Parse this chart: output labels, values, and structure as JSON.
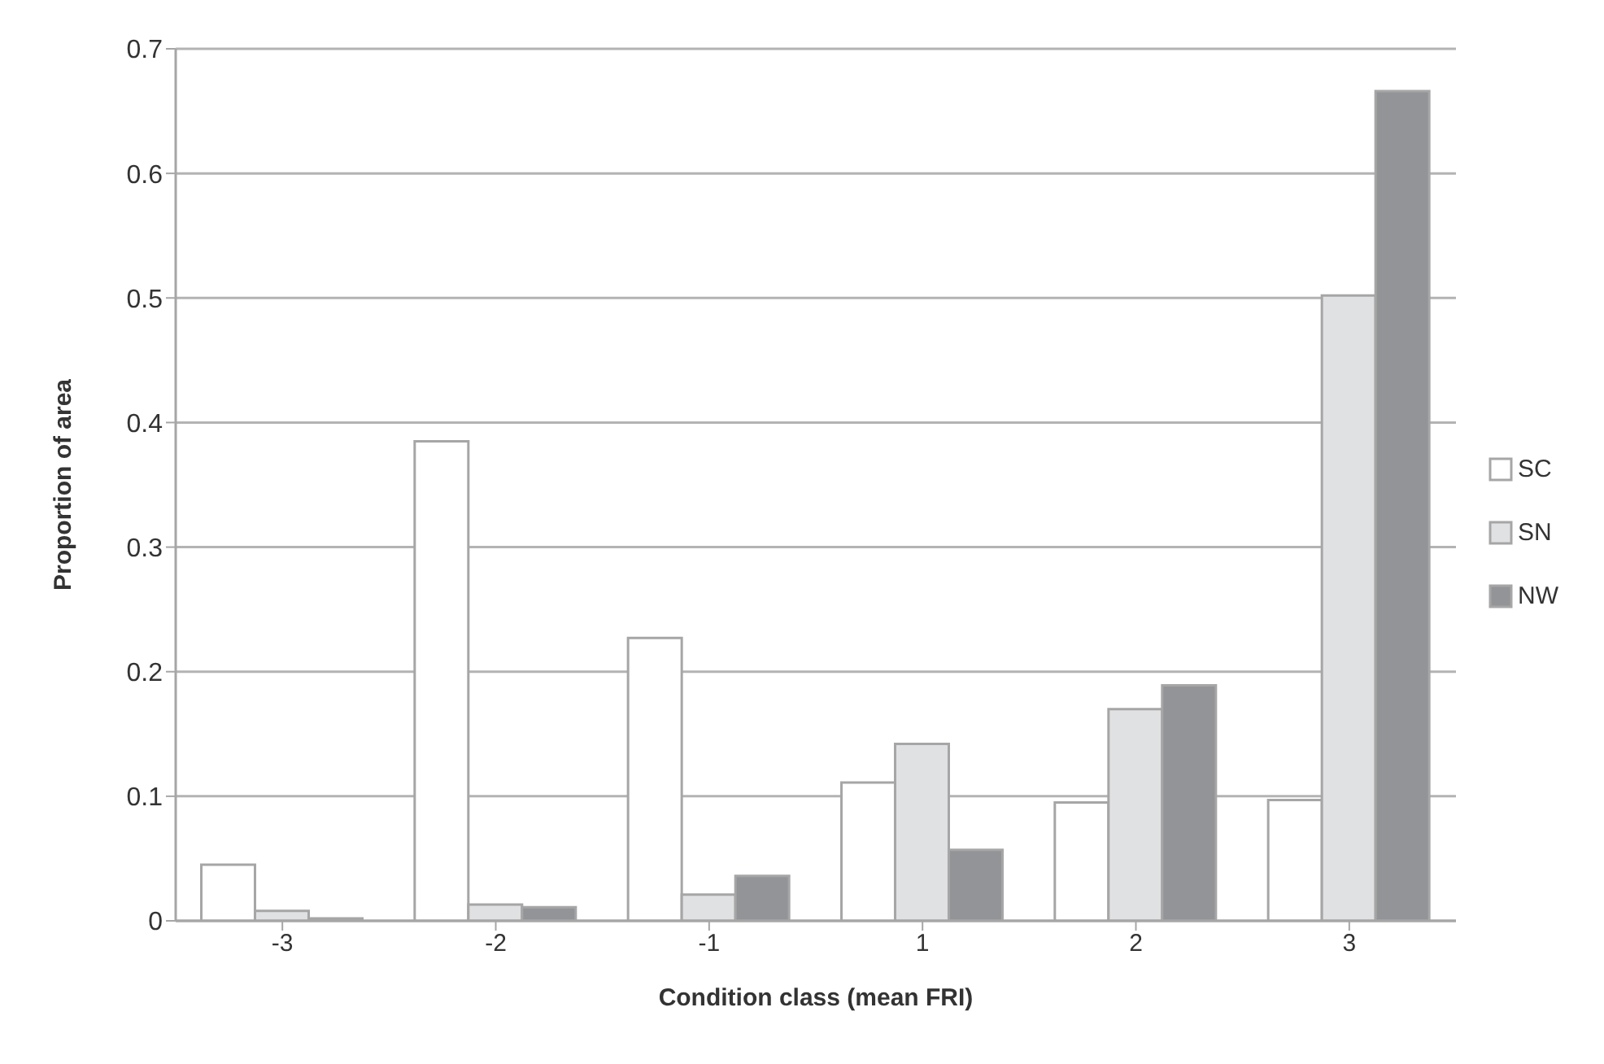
{
  "chart_data": {
    "type": "bar",
    "xlabel": "Condition class (mean FRI)",
    "ylabel": "Proportion of area",
    "categories": [
      "-3",
      "-2",
      "-1",
      "1",
      "2",
      "3"
    ],
    "series": [
      {
        "name": "SC",
        "color": "#ffffff",
        "values": [
          0.045,
          0.385,
          0.227,
          0.111,
          0.095,
          0.097
        ]
      },
      {
        "name": "SN",
        "color": "#e0e1e3",
        "values": [
          0.008,
          0.013,
          0.021,
          0.142,
          0.17,
          0.502
        ]
      },
      {
        "name": "NW",
        "color": "#939497",
        "values": [
          0.002,
          0.011,
          0.036,
          0.057,
          0.189,
          0.666
        ]
      }
    ],
    "ylim": [
      0,
      0.7
    ],
    "yticks": [
      0,
      0.1,
      0.2,
      0.3,
      0.4,
      0.5,
      0.6,
      0.7
    ],
    "grid": "y",
    "legend": "right"
  }
}
